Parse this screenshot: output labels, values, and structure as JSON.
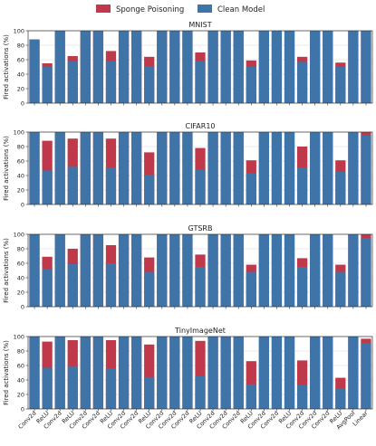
{
  "chart_data": {
    "type": "bar",
    "stacked_overlay": true,
    "legend": {
      "placement": "top-center",
      "entries": [
        {
          "name": "Sponge Poisoning",
          "color": "#c0394b"
        },
        {
          "name": "Clean Model",
          "color": "#3f74a8"
        }
      ]
    },
    "categories": [
      "Conv2d",
      "ReLU",
      "Conv2d",
      "ReLU",
      "Conv2d",
      "Conv2d",
      "ReLU",
      "Conv2d",
      "Conv2d",
      "ReLU",
      "Conv2d",
      "Conv2d",
      "Conv2d",
      "ReLU",
      "Conv2d",
      "Conv2d",
      "Conv2d",
      "ReLU",
      "Conv2d",
      "Conv2d",
      "ReLU",
      "Conv2d",
      "Conv2d",
      "Conv2d",
      "ReLU",
      "AvgPool",
      "Linear"
    ],
    "ylabel": "Fired activations (%)",
    "ylim": [
      0,
      100
    ],
    "yticks": [
      0,
      20,
      40,
      60,
      80,
      100
    ],
    "grid": true,
    "panels": [
      {
        "title": "MNIST",
        "series": [
          {
            "name": "Sponge Poisoning",
            "values": [
              88,
              55,
              100,
              65,
              100,
              100,
              72,
              100,
              100,
              64,
              100,
              100,
              100,
              70,
              100,
              100,
              100,
              59,
              100,
              100,
              100,
              64,
              100,
              100,
              56,
              100,
              100
            ]
          },
          {
            "name": "Clean Model",
            "values": [
              88,
              50,
              100,
              58,
              100,
              100,
              58,
              100,
              100,
              51,
              100,
              100,
              100,
              58,
              100,
              100,
              100,
              50,
              100,
              100,
              100,
              57,
              100,
              100,
              50,
              100,
              100
            ]
          }
        ]
      },
      {
        "title": "CIFAR10",
        "series": [
          {
            "name": "Sponge Poisoning",
            "values": [
              100,
              88,
              100,
              91,
              100,
              100,
              91,
              100,
              100,
              72,
              100,
              100,
              100,
              78,
              100,
              100,
              100,
              61,
              100,
              100,
              100,
              80,
              100,
              100,
              61,
              100,
              100
            ]
          },
          {
            "name": "Clean Model",
            "values": [
              100,
              47,
              100,
              52,
              100,
              100,
              51,
              100,
              100,
              41,
              100,
              100,
              100,
              48,
              100,
              100,
              100,
              43,
              100,
              100,
              100,
              51,
              100,
              100,
              45,
              100,
              95
            ]
          }
        ]
      },
      {
        "title": "GTSRB",
        "series": [
          {
            "name": "Sponge Poisoning",
            "values": [
              100,
              69,
              100,
              80,
              100,
              100,
              85,
              100,
              100,
              68,
              100,
              100,
              100,
              72,
              100,
              100,
              100,
              58,
              100,
              100,
              100,
              67,
              100,
              100,
              58,
              100,
              100
            ]
          },
          {
            "name": "Clean Model",
            "values": [
              100,
              52,
              100,
              59,
              100,
              100,
              60,
              100,
              100,
              48,
              100,
              100,
              100,
              55,
              100,
              100,
              100,
              48,
              100,
              100,
              100,
              55,
              100,
              100,
              48,
              100,
              95
            ]
          }
        ]
      },
      {
        "title": "TinyImageNet",
        "series": [
          {
            "name": "Sponge Poisoning",
            "values": [
              100,
              93,
              100,
              95,
              100,
              100,
              95,
              100,
              100,
              89,
              100,
              100,
              100,
              94,
              100,
              100,
              100,
              66,
              100,
              100,
              100,
              67,
              100,
              100,
              43,
              100,
              97
            ]
          },
          {
            "name": "Clean Model",
            "values": [
              100,
              57,
              100,
              59,
              100,
              100,
              56,
              100,
              100,
              44,
              100,
              100,
              100,
              45,
              100,
              100,
              100,
              34,
              100,
              100,
              100,
              33,
              100,
              100,
              28,
              100,
              91
            ]
          }
        ]
      }
    ]
  }
}
